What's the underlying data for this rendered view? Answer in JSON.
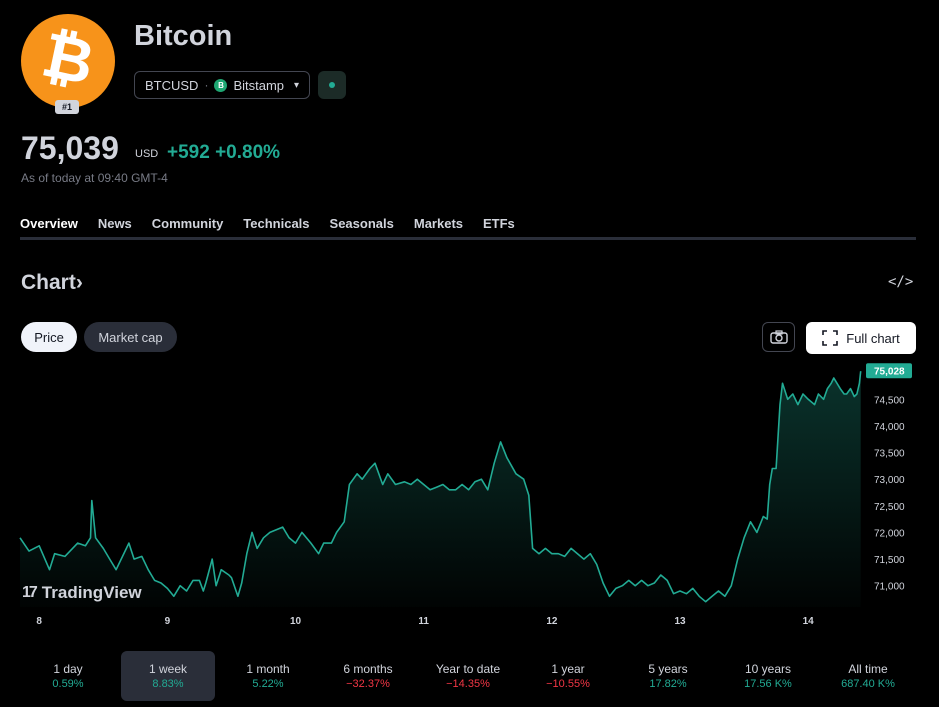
{
  "header": {
    "logo_glyph": "₿",
    "rank_badge": "#1",
    "title": "Bitcoin",
    "symbol": "BTCUSD",
    "symbol_separator": "·",
    "exchange_icon": "B",
    "exchange": "Bitstamp",
    "chevron": "⌄",
    "price": "75,039",
    "currency": "USD",
    "change": "+592 +0.80%",
    "as_of": "As of today at 09:40 GMT-4"
  },
  "tabs": [
    {
      "label": "Overview",
      "active": true
    },
    {
      "label": "News",
      "active": false
    },
    {
      "label": "Community",
      "active": false
    },
    {
      "label": "Technicals",
      "active": false
    },
    {
      "label": "Seasonals",
      "active": false
    },
    {
      "label": "Markets",
      "active": false
    },
    {
      "label": "ETFs",
      "active": false
    }
  ],
  "chart_section": {
    "title": "Chart",
    "title_arrow": "›",
    "embed_icon": "</>",
    "price_button": "Price",
    "marketcap_button": "Market cap",
    "full_chart_button": "Full chart",
    "watermark": "TradingView",
    "watermark_mark": "17"
  },
  "colors": {
    "up": "#22ab94",
    "down": "#f23645",
    "bitcoin": "#f7931a"
  },
  "chart_data": {
    "type": "area",
    "x_ticks": [
      "8",
      "9",
      "10",
      "11",
      "12",
      "13",
      "14"
    ],
    "y_ticks": [
      "71,000",
      "71,500",
      "72,000",
      "72,500",
      "73,000",
      "73,500",
      "74,000",
      "74,500"
    ],
    "ylim": [
      70600,
      75200
    ],
    "xlim": [
      7.85,
      14.42
    ],
    "last_price_label": "75,028",
    "series": [
      {
        "points": [
          [
            7.85,
            71900
          ],
          [
            7.92,
            71650
          ],
          [
            8.0,
            71750
          ],
          [
            8.08,
            71300
          ],
          [
            8.12,
            71600
          ],
          [
            8.2,
            71550
          ],
          [
            8.3,
            71800
          ],
          [
            8.36,
            71750
          ],
          [
            8.4,
            71900
          ],
          [
            8.41,
            72600
          ],
          [
            8.44,
            71900
          ],
          [
            8.5,
            71700
          ],
          [
            8.55,
            71500
          ],
          [
            8.6,
            71300
          ],
          [
            8.7,
            71800
          ],
          [
            8.74,
            71500
          ],
          [
            8.8,
            71550
          ],
          [
            8.85,
            71300
          ],
          [
            8.9,
            71100
          ],
          [
            8.95,
            71050
          ],
          [
            9.0,
            70950
          ],
          [
            9.05,
            70800
          ],
          [
            9.1,
            71000
          ],
          [
            9.15,
            70900
          ],
          [
            9.2,
            71100
          ],
          [
            9.25,
            71100
          ],
          [
            9.28,
            70900
          ],
          [
            9.3,
            71050
          ],
          [
            9.35,
            71500
          ],
          [
            9.38,
            71000
          ],
          [
            9.42,
            71300
          ],
          [
            9.48,
            71200
          ],
          [
            9.5,
            71150
          ],
          [
            9.55,
            70800
          ],
          [
            9.58,
            71050
          ],
          [
            9.62,
            71600
          ],
          [
            9.66,
            72000
          ],
          [
            9.7,
            71700
          ],
          [
            9.75,
            71900
          ],
          [
            9.8,
            72000
          ],
          [
            9.9,
            72100
          ],
          [
            9.95,
            71900
          ],
          [
            10.0,
            71800
          ],
          [
            10.05,
            72000
          ],
          [
            10.12,
            71800
          ],
          [
            10.18,
            71600
          ],
          [
            10.22,
            71800
          ],
          [
            10.28,
            71800
          ],
          [
            10.32,
            72000
          ],
          [
            10.38,
            72200
          ],
          [
            10.42,
            72900
          ],
          [
            10.48,
            73100
          ],
          [
            10.52,
            73000
          ],
          [
            10.58,
            73200
          ],
          [
            10.62,
            73300
          ],
          [
            10.68,
            72900
          ],
          [
            10.72,
            73100
          ],
          [
            10.78,
            72900
          ],
          [
            10.85,
            72950
          ],
          [
            10.9,
            72900
          ],
          [
            10.95,
            73000
          ],
          [
            11.0,
            72900
          ],
          [
            11.05,
            72800
          ],
          [
            11.1,
            72850
          ],
          [
            11.15,
            72900
          ],
          [
            11.2,
            72800
          ],
          [
            11.25,
            72800
          ],
          [
            11.3,
            72900
          ],
          [
            11.35,
            72800
          ],
          [
            11.4,
            72950
          ],
          [
            11.45,
            73000
          ],
          [
            11.5,
            72800
          ],
          [
            11.55,
            73300
          ],
          [
            11.6,
            73700
          ],
          [
            11.65,
            73400
          ],
          [
            11.72,
            73100
          ],
          [
            11.78,
            73000
          ],
          [
            11.82,
            72700
          ],
          [
            11.85,
            71700
          ],
          [
            11.9,
            71600
          ],
          [
            11.95,
            71700
          ],
          [
            12.0,
            71600
          ],
          [
            12.05,
            71600
          ],
          [
            12.1,
            71550
          ],
          [
            12.15,
            71700
          ],
          [
            12.2,
            71600
          ],
          [
            12.25,
            71500
          ],
          [
            12.3,
            71600
          ],
          [
            12.35,
            71400
          ],
          [
            12.4,
            71050
          ],
          [
            12.45,
            70800
          ],
          [
            12.5,
            70950
          ],
          [
            12.55,
            71000
          ],
          [
            12.6,
            71100
          ],
          [
            12.65,
            71000
          ],
          [
            12.7,
            71100
          ],
          [
            12.75,
            71000
          ],
          [
            12.8,
            71050
          ],
          [
            12.85,
            71200
          ],
          [
            12.9,
            71100
          ],
          [
            12.95,
            70850
          ],
          [
            13.0,
            70900
          ],
          [
            13.05,
            70850
          ],
          [
            13.1,
            70950
          ],
          [
            13.15,
            70800
          ],
          [
            13.2,
            70700
          ],
          [
            13.25,
            70800
          ],
          [
            13.3,
            70900
          ],
          [
            13.35,
            70800
          ],
          [
            13.4,
            71000
          ],
          [
            13.45,
            71500
          ],
          [
            13.5,
            71900
          ],
          [
            13.55,
            72200
          ],
          [
            13.6,
            72000
          ],
          [
            13.65,
            72300
          ],
          [
            13.68,
            72250
          ],
          [
            13.7,
            72900
          ],
          [
            13.72,
            73200
          ],
          [
            13.75,
            73200
          ],
          [
            13.78,
            74400
          ],
          [
            13.8,
            74800
          ],
          [
            13.84,
            74500
          ],
          [
            13.88,
            74600
          ],
          [
            13.92,
            74400
          ],
          [
            13.96,
            74600
          ],
          [
            14.0,
            74500
          ],
          [
            14.05,
            74400
          ],
          [
            14.08,
            74600
          ],
          [
            14.12,
            74500
          ],
          [
            14.15,
            74700
          ],
          [
            14.18,
            74800
          ],
          [
            14.2,
            74900
          ],
          [
            14.25,
            74700
          ],
          [
            14.28,
            74600
          ],
          [
            14.3,
            74600
          ],
          [
            14.33,
            74700
          ],
          [
            14.36,
            74550
          ],
          [
            14.38,
            74600
          ],
          [
            14.4,
            74800
          ],
          [
            14.41,
            75028
          ]
        ]
      }
    ]
  },
  "periods": [
    {
      "label": "1 day",
      "value": "0.59%",
      "trend": "pos",
      "active": false
    },
    {
      "label": "1 week",
      "value": "8.83%",
      "trend": "pos",
      "active": true
    },
    {
      "label": "1 month",
      "value": "5.22%",
      "trend": "pos",
      "active": false
    },
    {
      "label": "6 months",
      "value": "−32.37%",
      "trend": "neg",
      "active": false
    },
    {
      "label": "Year to date",
      "value": "−14.35%",
      "trend": "neg",
      "active": false
    },
    {
      "label": "1 year",
      "value": "−10.55%",
      "trend": "neg",
      "active": false
    },
    {
      "label": "5 years",
      "value": "17.82%",
      "trend": "pos",
      "active": false
    },
    {
      "label": "10 years",
      "value": "17.56 K%",
      "trend": "pos",
      "active": false
    },
    {
      "label": "All time",
      "value": "687.40 K%",
      "trend": "pos",
      "active": false
    }
  ]
}
